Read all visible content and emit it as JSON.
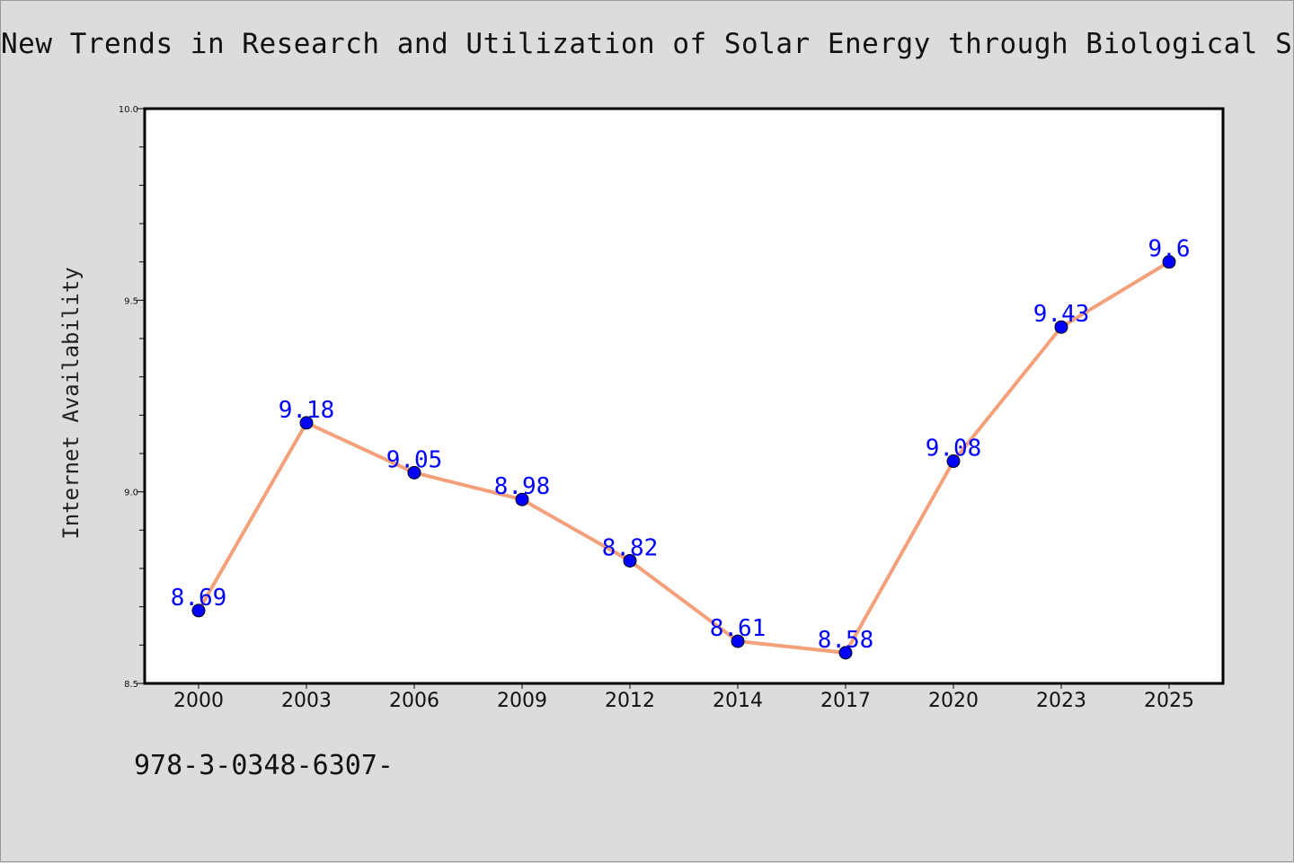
{
  "chart_data": {
    "type": "line",
    "title": "New Trends in Research and Utilization of Solar Energy through Biological System",
    "xlabel": "",
    "ylabel": "Internet Availability",
    "categories": [
      "2000",
      "2003",
      "2006",
      "2009",
      "2012",
      "2014",
      "2017",
      "2020",
      "2023",
      "2025"
    ],
    "values": [
      8.69,
      9.18,
      9.05,
      8.98,
      8.82,
      8.61,
      8.58,
      9.08,
      9.43,
      9.6
    ],
    "data_labels": [
      "8.69",
      "9.18",
      "9.05",
      "8.98",
      "8.82",
      "8.61",
      "8.58",
      "9.08",
      "9.43",
      "9.6"
    ],
    "ylim": [
      8.5,
      10.0
    ],
    "y_ticks": [
      "8.5",
      "9.0",
      "9.5",
      "10.0"
    ],
    "y_tick_values": [
      8.5,
      9.0,
      9.5,
      10.0
    ],
    "grid": false,
    "legend": "none",
    "line_color": "#f4a07a",
    "marker_color": "#0000ff",
    "label_color": "#0000ff"
  },
  "footer": {
    "code": "978-3-0348-6307-"
  }
}
